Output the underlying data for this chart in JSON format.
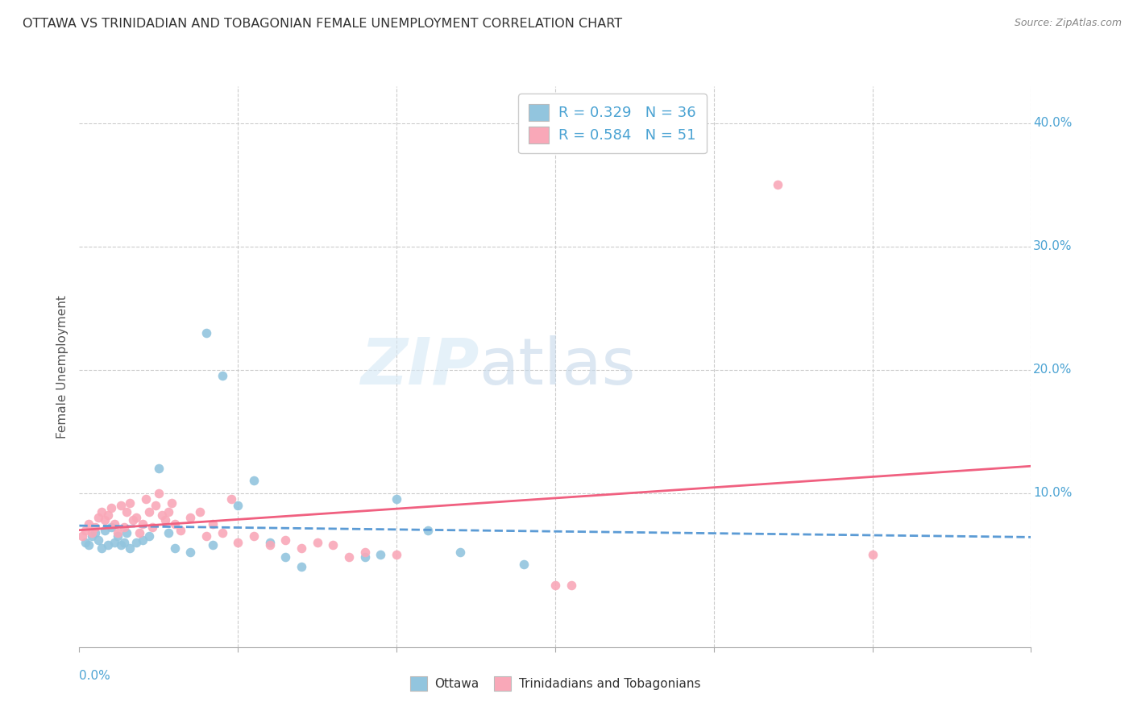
{
  "title": "OTTAWA VS TRINIDADIAN AND TOBAGONIAN FEMALE UNEMPLOYMENT CORRELATION CHART",
  "source": "Source: ZipAtlas.com",
  "ylabel": "Female Unemployment",
  "xlim": [
    0.0,
    0.3
  ],
  "ylim": [
    -0.025,
    0.43
  ],
  "watermark_zip": "ZIP",
  "watermark_atlas": "atlas",
  "legend_line1": "R = 0.329   N = 36",
  "legend_line2": "R = 0.584   N = 51",
  "label_ottawa": "Ottawa",
  "label_tnt": "Trinidadians and Tobagonians",
  "color_ottawa": "#92C5DE",
  "color_tnt": "#F9A8B8",
  "color_reg_ottawa": "#5B9BD5",
  "color_reg_tnt": "#F06080",
  "ottawa_x": [
    0.002,
    0.003,
    0.004,
    0.005,
    0.006,
    0.007,
    0.008,
    0.009,
    0.01,
    0.011,
    0.012,
    0.013,
    0.014,
    0.015,
    0.016,
    0.018,
    0.02,
    0.022,
    0.025,
    0.028,
    0.03,
    0.035,
    0.04,
    0.042,
    0.045,
    0.05,
    0.055,
    0.06,
    0.065,
    0.07,
    0.09,
    0.095,
    0.1,
    0.11,
    0.12,
    0.14
  ],
  "ottawa_y": [
    0.06,
    0.058,
    0.065,
    0.068,
    0.062,
    0.055,
    0.07,
    0.058,
    0.072,
    0.06,
    0.065,
    0.058,
    0.06,
    0.068,
    0.055,
    0.06,
    0.062,
    0.065,
    0.12,
    0.068,
    0.055,
    0.052,
    0.23,
    0.058,
    0.195,
    0.09,
    0.11,
    0.06,
    0.048,
    0.04,
    0.048,
    0.05,
    0.095,
    0.07,
    0.052,
    0.042
  ],
  "tnt_x": [
    0.001,
    0.002,
    0.003,
    0.004,
    0.005,
    0.006,
    0.007,
    0.008,
    0.009,
    0.01,
    0.011,
    0.012,
    0.013,
    0.014,
    0.015,
    0.016,
    0.017,
    0.018,
    0.019,
    0.02,
    0.021,
    0.022,
    0.023,
    0.024,
    0.025,
    0.026,
    0.027,
    0.028,
    0.029,
    0.03,
    0.032,
    0.035,
    0.038,
    0.04,
    0.042,
    0.045,
    0.048,
    0.05,
    0.055,
    0.06,
    0.065,
    0.07,
    0.075,
    0.08,
    0.085,
    0.09,
    0.1,
    0.15,
    0.155,
    0.22,
    0.25
  ],
  "tnt_y": [
    0.065,
    0.07,
    0.075,
    0.068,
    0.072,
    0.08,
    0.085,
    0.078,
    0.082,
    0.088,
    0.075,
    0.068,
    0.09,
    0.072,
    0.085,
    0.092,
    0.078,
    0.08,
    0.068,
    0.075,
    0.095,
    0.085,
    0.072,
    0.09,
    0.1,
    0.082,
    0.078,
    0.085,
    0.092,
    0.075,
    0.07,
    0.08,
    0.085,
    0.065,
    0.075,
    0.068,
    0.095,
    0.06,
    0.065,
    0.058,
    0.062,
    0.055,
    0.06,
    0.058,
    0.048,
    0.052,
    0.05,
    0.025,
    0.025,
    0.35,
    0.05
  ]
}
